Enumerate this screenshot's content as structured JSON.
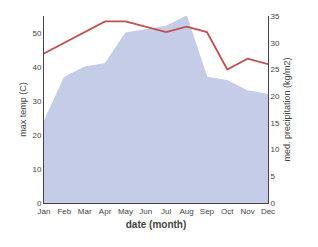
{
  "chart_data": {
    "type": "line",
    "categories": [
      "Jan",
      "Feb",
      "Mar",
      "Apr",
      "May",
      "Jun",
      "Jul",
      "Aug",
      "Sep",
      "Oct",
      "Nov",
      "Dec"
    ],
    "series": [
      {
        "type": "area",
        "color": "#c5cce8",
        "values": [
          24,
          37,
          40,
          41,
          50,
          51,
          52,
          55,
          37,
          36,
          33,
          32
        ]
      },
      {
        "type": "line",
        "axis": "y2",
        "color": "#c0504d",
        "values": [
          28,
          30,
          32,
          34,
          34,
          33,
          32,
          33,
          32,
          25,
          27,
          26
        ]
      }
    ],
    "xlabel": "date (month)",
    "ylabel": "max temp (C)",
    "y2label": "med. precipitation (kg/m2)",
    "ylim": [
      0,
      55
    ],
    "yticks": [
      0,
      10,
      20,
      30,
      40,
      50
    ],
    "y2lim": [
      0,
      35
    ],
    "y2ticks": [
      0,
      5,
      10,
      15,
      20,
      25,
      30,
      35
    ],
    "grid": false
  }
}
